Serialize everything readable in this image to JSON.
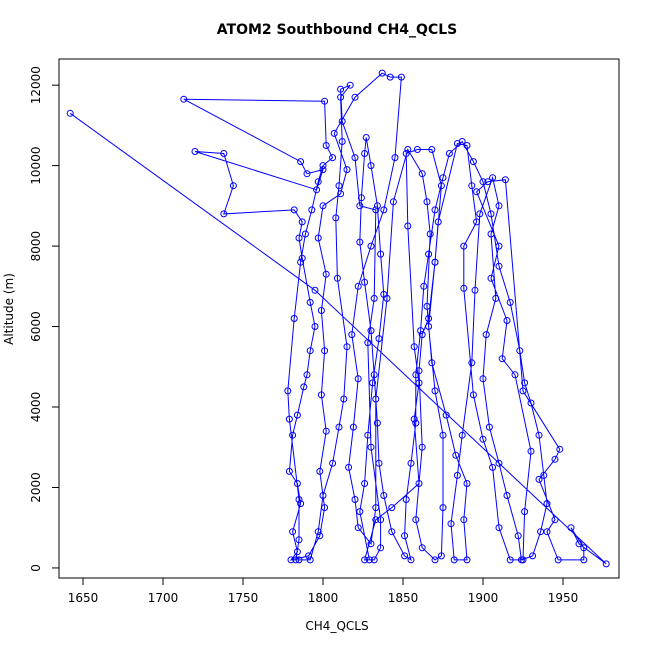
{
  "chart_data": {
    "type": "line",
    "title": "ATOM2 Southbound CH4_QCLS",
    "xlabel": "CH4_QCLS",
    "ylabel": "Altitude (m)",
    "xlim": [
      1635,
      1985
    ],
    "ylim": [
      -250,
      12650
    ],
    "x_ticks": [
      1650,
      1700,
      1750,
      1800,
      1850,
      1900,
      1950
    ],
    "y_ticks": [
      0,
      2000,
      4000,
      6000,
      8000,
      10000,
      12000
    ],
    "grid": false,
    "legend": "none",
    "color": "#0000ff",
    "series": [
      {
        "marker": "open-circle",
        "points": [
          [
            1642,
            11300
          ],
          [
            1795,
            6900
          ],
          [
            1977,
            100
          ],
          [
            1960,
            600
          ],
          [
            1955,
            1000
          ],
          [
            1963,
            500
          ],
          [
            1963,
            200
          ],
          [
            1947,
            200
          ],
          [
            1940,
            900
          ],
          [
            1945,
            1200
          ],
          [
            1935,
            2200
          ],
          [
            1945,
            2700
          ],
          [
            1948,
            2950
          ],
          [
            1925,
            4400
          ],
          [
            1914,
            9650
          ],
          [
            1903,
            9600
          ],
          [
            1896,
            9350
          ],
          [
            1910,
            8000
          ],
          [
            1905,
            7200
          ],
          [
            1915,
            6150
          ],
          [
            1912,
            5200
          ],
          [
            1920,
            4800
          ],
          [
            1930,
            2900
          ],
          [
            1926,
            1400
          ],
          [
            1925,
            200
          ],
          [
            1917,
            200
          ],
          [
            1910,
            1000
          ],
          [
            1906,
            2500
          ],
          [
            1900,
            3200
          ],
          [
            1894,
            4300
          ],
          [
            1888,
            6950
          ],
          [
            1888,
            8000
          ],
          [
            1896,
            8600
          ],
          [
            1893,
            9500
          ],
          [
            1890,
            10500
          ],
          [
            1884,
            10550
          ],
          [
            1872,
            8600
          ],
          [
            1870,
            7600
          ],
          [
            1866,
            6200
          ],
          [
            1862,
            5800
          ],
          [
            1860,
            4900
          ],
          [
            1862,
            3000
          ],
          [
            1858,
            1200
          ],
          [
            1862,
            500
          ],
          [
            1870,
            200
          ],
          [
            1874,
            300
          ],
          [
            1875,
            1500
          ],
          [
            1875,
            3300
          ],
          [
            1870,
            4400
          ],
          [
            1866,
            6000
          ],
          [
            1870,
            7600
          ],
          [
            1874,
            9500
          ],
          [
            1868,
            10400
          ],
          [
            1859,
            10400
          ],
          [
            1852,
            10300
          ],
          [
            1853,
            8500
          ],
          [
            1857,
            5500
          ],
          [
            1860,
            4600
          ],
          [
            1857,
            3700
          ],
          [
            1860,
            2100
          ],
          [
            1843,
            1500
          ],
          [
            1833,
            1200
          ],
          [
            1826,
            200
          ],
          [
            1832,
            200
          ],
          [
            1836,
            500
          ],
          [
            1836,
            1200
          ],
          [
            1830,
            3000
          ],
          [
            1828,
            5600
          ],
          [
            1832,
            6700
          ],
          [
            1833,
            8900
          ],
          [
            1823,
            9000
          ],
          [
            1820,
            10200
          ],
          [
            1812,
            11100
          ],
          [
            1811,
            11900
          ],
          [
            1817,
            12000
          ],
          [
            1811,
            11700
          ],
          [
            1812,
            10600
          ],
          [
            1810,
            9500
          ],
          [
            1808,
            8700
          ],
          [
            1809,
            7200
          ],
          [
            1815,
            5500
          ],
          [
            1813,
            4200
          ],
          [
            1810,
            3500
          ],
          [
            1806,
            2600
          ],
          [
            1800,
            1800
          ],
          [
            1797,
            900
          ],
          [
            1792,
            200
          ],
          [
            1785,
            200
          ],
          [
            1783,
            200
          ],
          [
            1785,
            700
          ],
          [
            1785,
            1700
          ],
          [
            1779,
            3700
          ],
          [
            1778,
            4400
          ],
          [
            1782,
            6200
          ],
          [
            1786,
            7600
          ],
          [
            1789,
            8300
          ],
          [
            1793,
            8900
          ],
          [
            1797,
            9600
          ],
          [
            1800,
            10000
          ],
          [
            1806,
            10200
          ],
          [
            1802,
            10500
          ],
          [
            1801,
            11600
          ],
          [
            1713,
            11650
          ],
          [
            1786,
            10100
          ],
          [
            1790,
            9800
          ],
          [
            1800,
            9900
          ],
          [
            1796,
            9400
          ],
          [
            1720,
            10350
          ],
          [
            1738,
            10300
          ],
          [
            1744,
            9500
          ],
          [
            1738,
            8800
          ],
          [
            1782,
            8900
          ],
          [
            1787,
            8600
          ],
          [
            1785,
            8200
          ],
          [
            1787,
            7700
          ],
          [
            1792,
            6600
          ],
          [
            1795,
            6000
          ],
          [
            1792,
            5400
          ],
          [
            1790,
            4800
          ],
          [
            1788,
            4500
          ],
          [
            1784,
            3800
          ],
          [
            1781,
            3300
          ],
          [
            1779,
            2400
          ],
          [
            1784,
            2100
          ],
          [
            1786,
            1600
          ],
          [
            1781,
            900
          ],
          [
            1784,
            400
          ],
          [
            1780,
            200
          ],
          [
            1791,
            300
          ],
          [
            1798,
            800
          ],
          [
            1801,
            1500
          ],
          [
            1798,
            2400
          ],
          [
            1802,
            3400
          ],
          [
            1799,
            4300
          ],
          [
            1801,
            5400
          ],
          [
            1799,
            6400
          ],
          [
            1802,
            7300
          ],
          [
            1797,
            8200
          ],
          [
            1800,
            9000
          ],
          [
            1811,
            9300
          ],
          [
            1815,
            9900
          ],
          [
            1807,
            10800
          ],
          [
            1820,
            11700
          ],
          [
            1837,
            12300
          ],
          [
            1842,
            12200
          ],
          [
            1849,
            12200
          ],
          [
            1845,
            10200
          ],
          [
            1838,
            8900
          ],
          [
            1830,
            8000
          ],
          [
            1822,
            7000
          ],
          [
            1818,
            5800
          ],
          [
            1822,
            4700
          ],
          [
            1819,
            3500
          ],
          [
            1816,
            2500
          ],
          [
            1820,
            1700
          ],
          [
            1822,
            1000
          ],
          [
            1830,
            600
          ],
          [
            1833,
            1500
          ],
          [
            1833,
            4200
          ],
          [
            1840,
            6700
          ],
          [
            1844,
            9100
          ],
          [
            1853,
            10400
          ],
          [
            1862,
            9800
          ],
          [
            1865,
            9100
          ],
          [
            1867,
            8300
          ],
          [
            1865,
            6500
          ],
          [
            1868,
            5100
          ],
          [
            1877,
            3800
          ],
          [
            1883,
            2800
          ],
          [
            1890,
            2100
          ],
          [
            1888,
            1200
          ],
          [
            1890,
            200
          ],
          [
            1882,
            200
          ],
          [
            1880,
            1100
          ],
          [
            1884,
            2300
          ],
          [
            1887,
            3300
          ],
          [
            1893,
            5100
          ],
          [
            1895,
            6900
          ],
          [
            1898,
            8800
          ],
          [
            1906,
            9700
          ],
          [
            1910,
            9000
          ],
          [
            1905,
            8300
          ],
          [
            1908,
            6700
          ],
          [
            1902,
            5800
          ],
          [
            1900,
            4700
          ],
          [
            1904,
            3500
          ],
          [
            1910,
            2600
          ],
          [
            1915,
            1800
          ],
          [
            1922,
            800
          ],
          [
            1924,
            200
          ],
          [
            1931,
            300
          ],
          [
            1936,
            900
          ],
          [
            1940,
            1600
          ],
          [
            1938,
            2300
          ],
          [
            1935,
            3300
          ],
          [
            1930,
            4100
          ],
          [
            1926,
            4600
          ],
          [
            1923,
            5400
          ],
          [
            1917,
            6600
          ],
          [
            1910,
            7500
          ],
          [
            1905,
            8800
          ],
          [
            1900,
            9600
          ],
          [
            1894,
            10100
          ],
          [
            1887,
            10600
          ],
          [
            1879,
            10300
          ],
          [
            1875,
            9700
          ],
          [
            1870,
            8900
          ],
          [
            1866,
            7800
          ],
          [
            1863,
            7000
          ],
          [
            1861,
            5900
          ],
          [
            1858,
            4800
          ],
          [
            1858,
            3600
          ],
          [
            1855,
            2600
          ],
          [
            1852,
            1700
          ],
          [
            1851,
            800
          ],
          [
            1855,
            200
          ],
          [
            1851,
            300
          ],
          [
            1843,
            900
          ],
          [
            1838,
            1800
          ],
          [
            1835,
            2600
          ],
          [
            1834,
            3600
          ],
          [
            1832,
            4800
          ],
          [
            1830,
            5900
          ],
          [
            1826,
            7100
          ],
          [
            1823,
            8100
          ],
          [
            1824,
            9200
          ],
          [
            1826,
            10300
          ],
          [
            1827,
            10700
          ],
          [
            1830,
            10000
          ],
          [
            1834,
            9000
          ],
          [
            1836,
            7800
          ],
          [
            1838,
            6800
          ],
          [
            1835,
            5700
          ],
          [
            1831,
            4600
          ],
          [
            1828,
            3300
          ],
          [
            1826,
            2100
          ],
          [
            1823,
            1400
          ],
          [
            1829,
            200
          ]
        ]
      }
    ]
  }
}
